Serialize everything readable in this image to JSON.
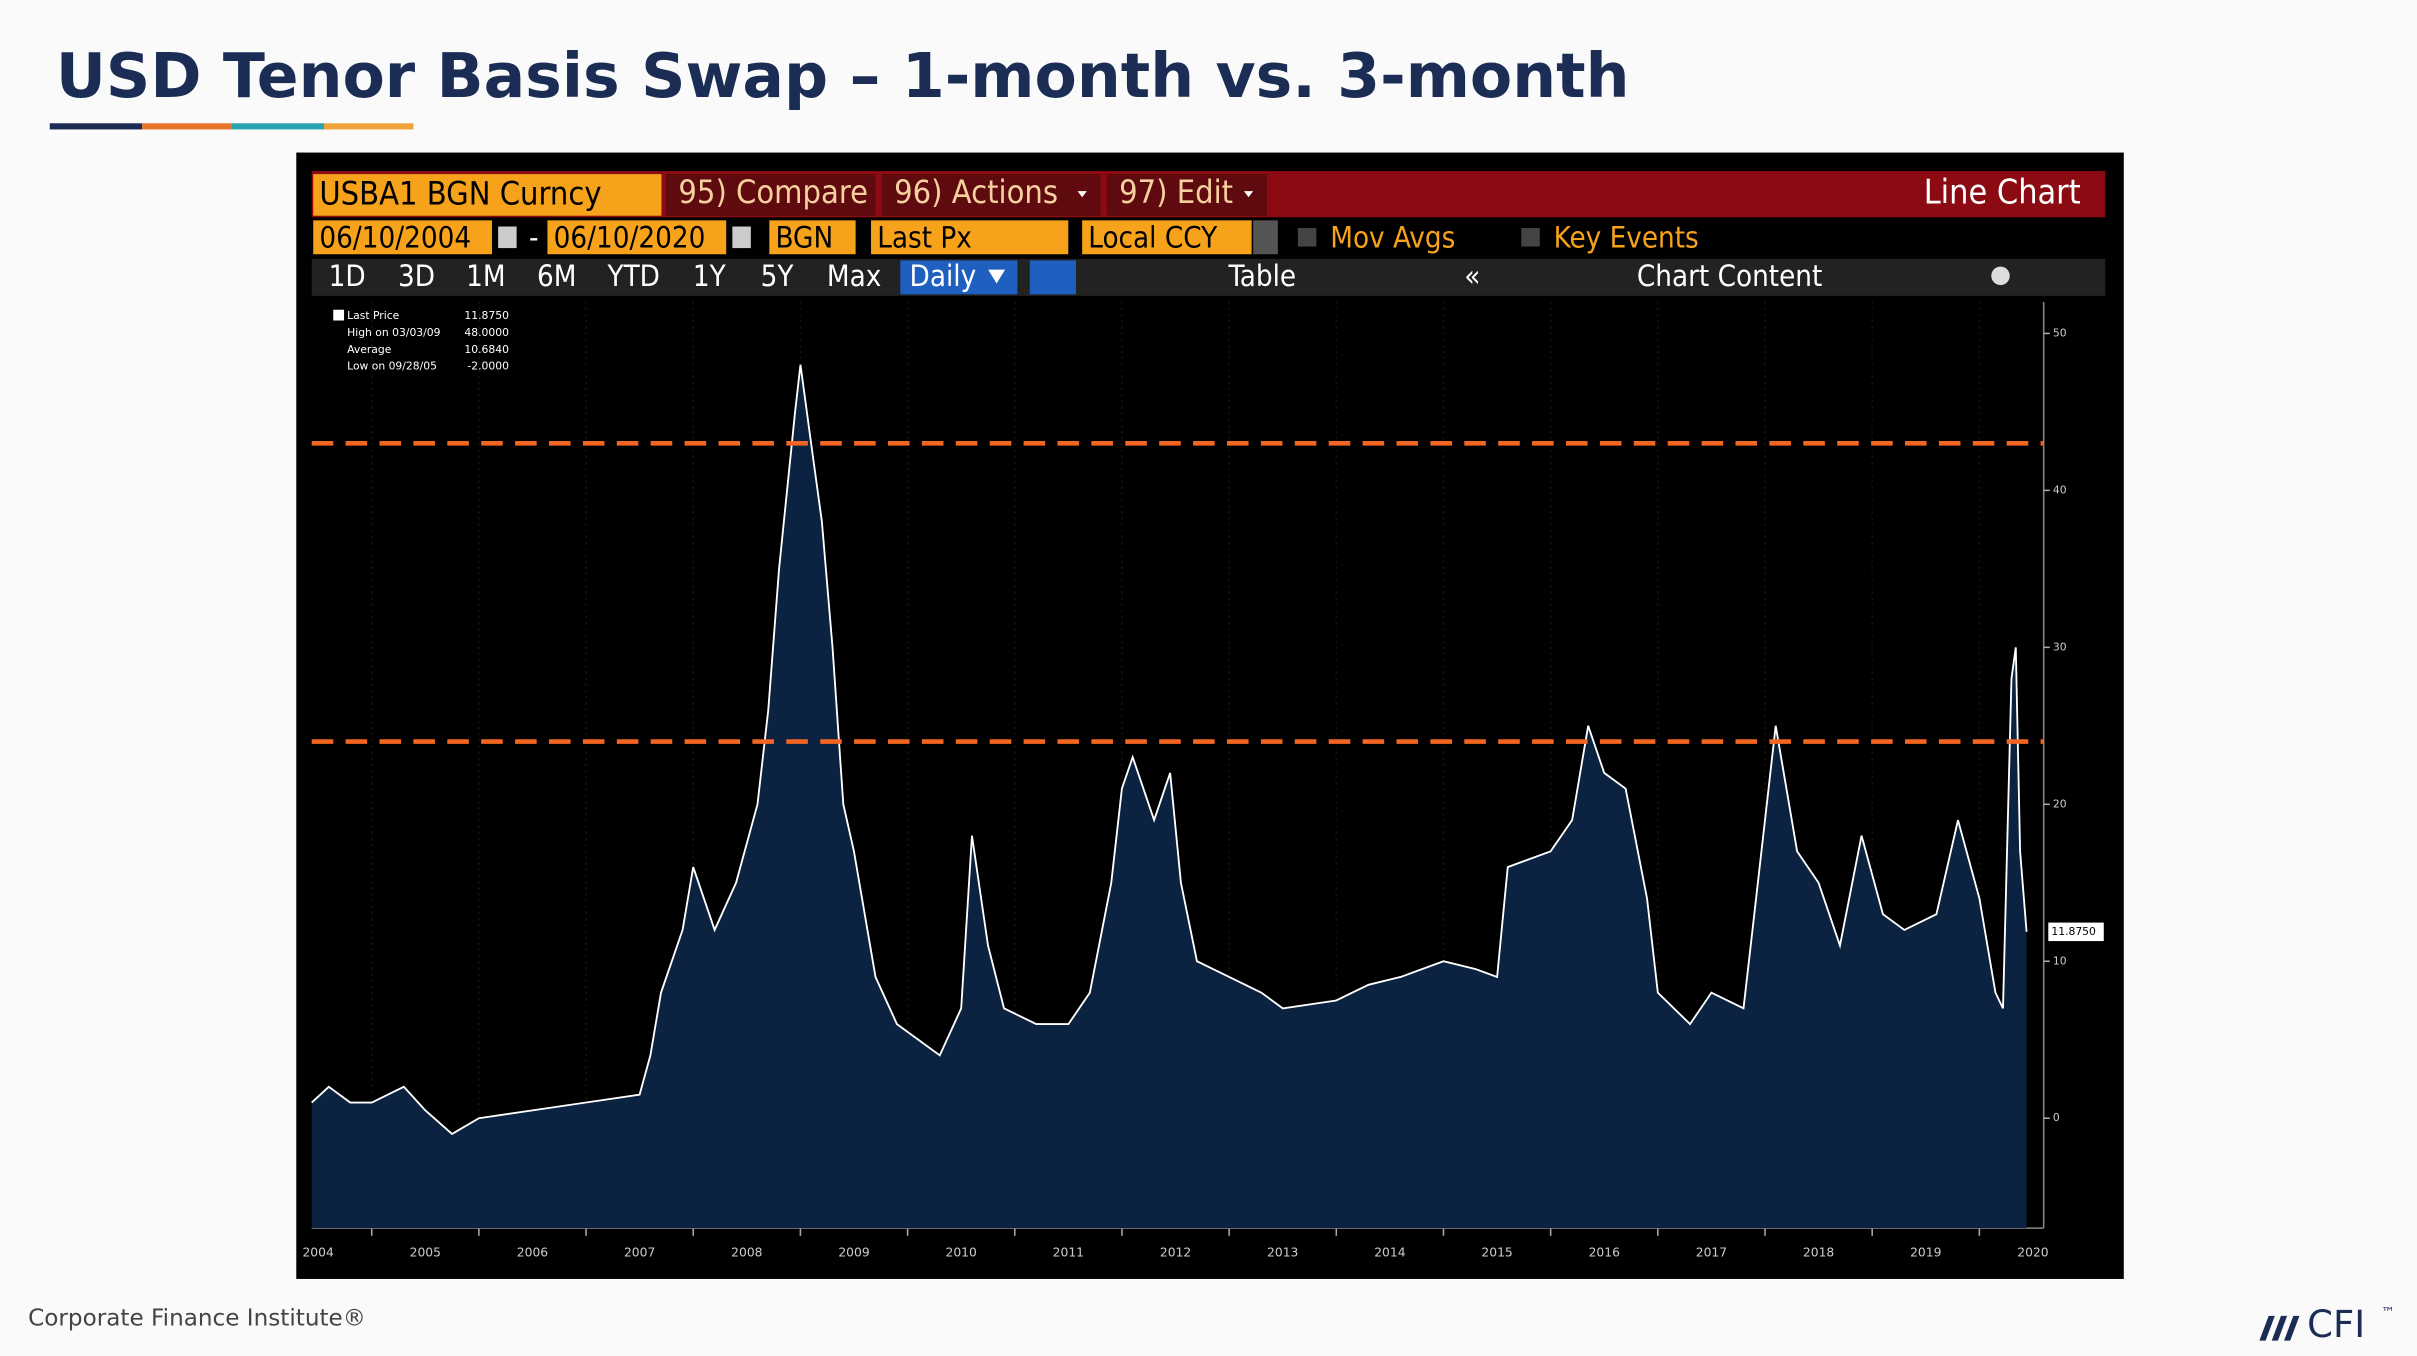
{
  "slide": {
    "title": "USD Tenor Basis Swap – 1-month vs. 3-month",
    "footer": "Corporate Finance Institute®",
    "logo": "CFI",
    "trademark": "™"
  },
  "toolbar": {
    "ticker": "USBA1 BGN Curncy",
    "compare": "95) Compare",
    "actions": "96) Actions",
    "edit": "97) Edit",
    "chart_type": "Line Chart",
    "start_date": "06/10/2004",
    "end_date": "06/10/2020",
    "source": "BGN",
    "field": "Last Px",
    "currency": "Local CCY",
    "mov_avgs": "Mov Avgs",
    "key_events": "Key Events",
    "periods": [
      "1D",
      "3D",
      "1M",
      "6M",
      "YTD",
      "1Y",
      "5Y",
      "Max"
    ],
    "frequency": "Daily",
    "table": "Table",
    "chart_content": "Chart Content"
  },
  "chart_data": {
    "type": "line",
    "x": [
      2004.44,
      2004.6,
      2004.8,
      2005.0,
      2005.3,
      2005.5,
      2005.75,
      2006.0,
      2006.5,
      2007.0,
      2007.5,
      2007.6,
      2007.7,
      2007.9,
      2008.0,
      2008.2,
      2008.4,
      2008.6,
      2008.7,
      2008.8,
      2008.95,
      2009.0,
      2009.1,
      2009.2,
      2009.3,
      2009.4,
      2009.5,
      2009.7,
      2009.9,
      2010.1,
      2010.3,
      2010.5,
      2010.6,
      2010.75,
      2010.9,
      2011.2,
      2011.5,
      2011.7,
      2011.9,
      2012.0,
      2012.1,
      2012.3,
      2012.45,
      2012.55,
      2012.7,
      2013.0,
      2013.3,
      2013.5,
      2014.0,
      2014.3,
      2014.6,
      2015.0,
      2015.3,
      2015.5,
      2015.6,
      2016.0,
      2016.2,
      2016.35,
      2016.5,
      2016.7,
      2016.9,
      2017.0,
      2017.3,
      2017.5,
      2017.8,
      2017.9,
      2018.1,
      2018.3,
      2018.5,
      2018.7,
      2018.9,
      2019.1,
      2019.3,
      2019.6,
      2019.8,
      2020.0,
      2020.15,
      2020.22,
      2020.3,
      2020.34,
      2020.38,
      2020.44
    ],
    "series": [
      {
        "name": "Last Price",
        "color": "#ffffff",
        "fill": "#0b2240",
        "values": [
          1,
          2,
          1,
          1,
          2,
          0.5,
          -1,
          0,
          0.5,
          1,
          1.5,
          4,
          8,
          12,
          16,
          12,
          15,
          20,
          26,
          35,
          45,
          48,
          43,
          38,
          30,
          20,
          17,
          9,
          6,
          5,
          4,
          7,
          18,
          11,
          7,
          6,
          6,
          8,
          15,
          21,
          23,
          19,
          22,
          15,
          10,
          9,
          8,
          7,
          7.5,
          8.5,
          9,
          10,
          9.5,
          9,
          16,
          17,
          19,
          25,
          22,
          21,
          14,
          8,
          6,
          8,
          7,
          13,
          25,
          17,
          15,
          11,
          18,
          13,
          12,
          13,
          19,
          14,
          8,
          7,
          28,
          30,
          17,
          11.875
        ]
      }
    ],
    "xlim": [
      2004.44,
      2020.6
    ],
    "xticks": [
      2004,
      2005,
      2006,
      2007,
      2008,
      2009,
      2010,
      2011,
      2012,
      2013,
      2014,
      2015,
      2016,
      2017,
      2018,
      2019,
      2020
    ],
    "ylim": [
      -7,
      52
    ],
    "yticks": [
      0,
      10,
      20,
      30,
      40,
      50
    ],
    "reference_lines": {
      "values": [
        43,
        24
      ],
      "color": "#f26522"
    },
    "legend": [
      {
        "label": "Last Price",
        "value": "11.8750"
      },
      {
        "label": "High on 03/03/09",
        "value": "48.0000"
      },
      {
        "label": "Average",
        "value": "10.6840"
      },
      {
        "label": "Low on 09/28/05",
        "value": "-2.0000"
      }
    ]
  }
}
